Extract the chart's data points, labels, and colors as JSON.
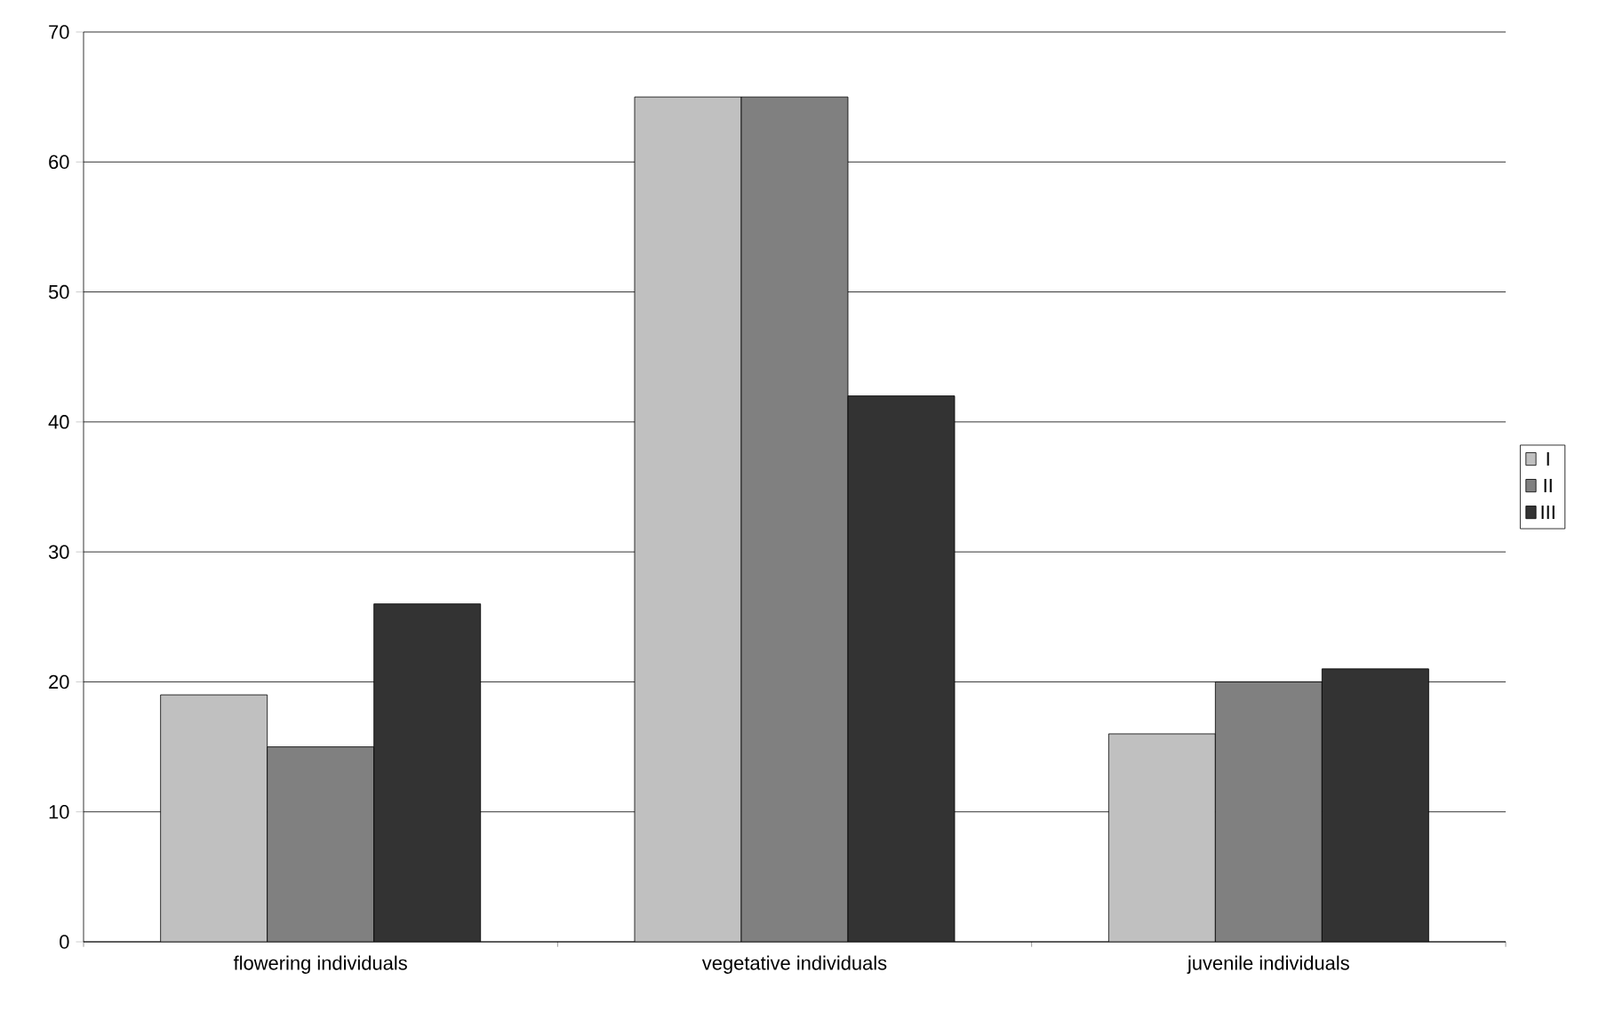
{
  "chart_data": {
    "type": "bar",
    "categories": [
      "flowering individuals",
      "vegetative individuals",
      "juvenile individuals"
    ],
    "series": [
      {
        "name": "I",
        "color": "#c0c0c0",
        "values": [
          19,
          65,
          16
        ]
      },
      {
        "name": "II",
        "color": "#808080",
        "values": [
          15,
          65,
          20
        ]
      },
      {
        "name": "III",
        "color": "#333333",
        "values": [
          26,
          42,
          21
        ]
      }
    ],
    "ylim": [
      0,
      70
    ],
    "yticks": [
      0,
      10,
      20,
      30,
      40,
      50,
      60,
      70
    ],
    "grid": "y",
    "legend": "right"
  }
}
